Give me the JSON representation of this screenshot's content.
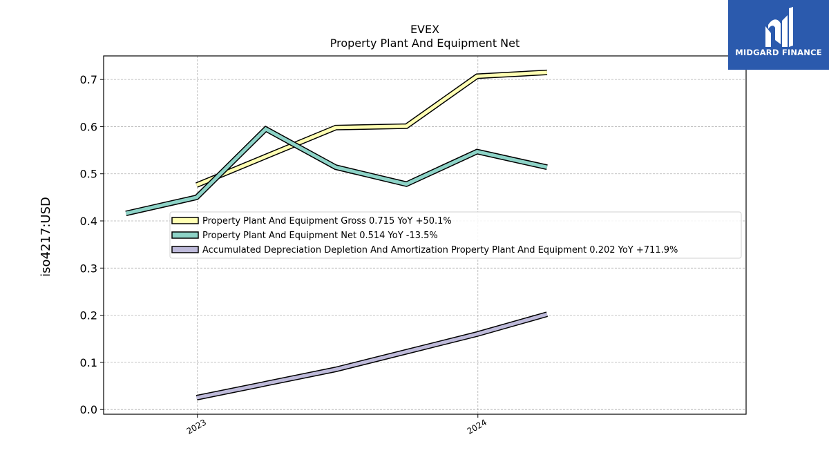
{
  "chart_data": {
    "type": "line",
    "title": "EVEX",
    "subtitle": "Property Plant And Equipment Net",
    "xlabel": "",
    "ylabel": "iso4217:USD",
    "xlim": [
      "2022-09-01",
      "2024-12-15"
    ],
    "ylim": [
      -0.01,
      0.75
    ],
    "x_ticks": [
      "2023",
      "2024"
    ],
    "x_tick_dates": [
      "2023-01-01",
      "2024-01-01"
    ],
    "y_ticks": [
      0.0,
      0.1,
      0.2,
      0.3,
      0.4,
      0.5,
      0.6,
      0.7
    ],
    "grid": true,
    "legend_position": "center-right",
    "series": [
      {
        "name": "Property Plant And Equipment Gross",
        "legend_label": "Property Plant And Equipment Gross  0.715 YoY +50.1%",
        "color": "#ffffb3",
        "points": [
          {
            "x": "2022-12-31",
            "y": 0.476
          },
          {
            "x": "2023-06-30",
            "y": 0.598
          },
          {
            "x": "2023-09-30",
            "y": 0.601
          },
          {
            "x": "2023-12-31",
            "y": 0.707
          },
          {
            "x": "2024-03-31",
            "y": 0.715
          }
        ]
      },
      {
        "name": "Property Plant And Equipment Net",
        "legend_label": "Property Plant And Equipment Net  0.514 YoY -13.5%",
        "color": "#8dd3c7",
        "points": [
          {
            "x": "2022-09-30",
            "y": 0.416
          },
          {
            "x": "2022-12-31",
            "y": 0.45
          },
          {
            "x": "2023-03-31",
            "y": 0.595
          },
          {
            "x": "2023-06-30",
            "y": 0.514
          },
          {
            "x": "2023-09-30",
            "y": 0.478
          },
          {
            "x": "2023-12-31",
            "y": 0.547
          },
          {
            "x": "2024-03-31",
            "y": 0.514
          }
        ]
      },
      {
        "name": "Accumulated Depreciation Depletion And Amortization Property Plant And Equipment",
        "legend_label": "Accumulated Depreciation Depletion And Amortization Property Plant And Equipment  0.202 YoY +711.9%",
        "color": "#bebada",
        "points": [
          {
            "x": "2022-12-31",
            "y": 0.025
          },
          {
            "x": "2023-06-30",
            "y": 0.085
          },
          {
            "x": "2023-12-31",
            "y": 0.16
          },
          {
            "x": "2024-03-31",
            "y": 0.202
          }
        ]
      }
    ]
  },
  "logo": {
    "text": "MIDGARD FINANCE",
    "background": "#2b5aad"
  }
}
